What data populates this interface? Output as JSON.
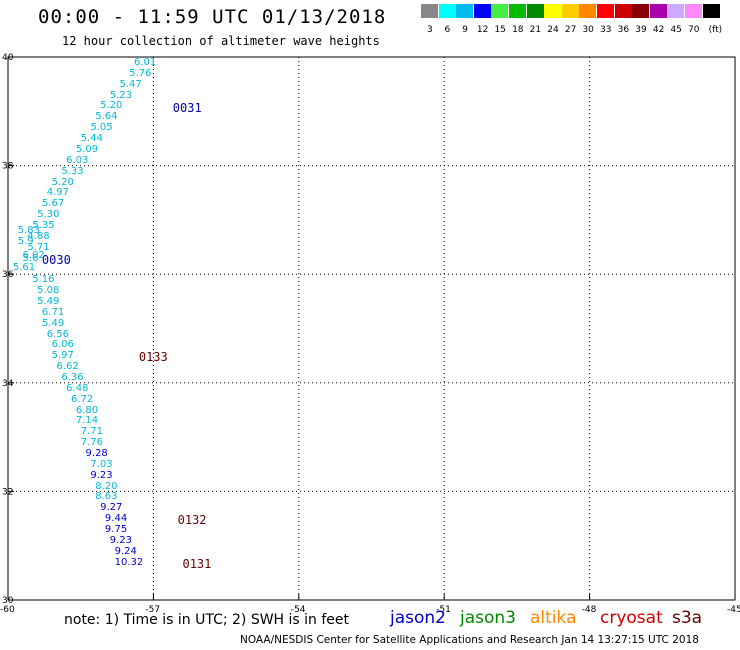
{
  "title": "00:00 - 11:59 UTC 01/13/2018",
  "subtitle": "12 hour collection of altimeter wave heights",
  "scale": {
    "colors": [
      "#888888",
      "#00ffff",
      "#00bbee",
      "#0000ff",
      "#44ee44",
      "#00bb00",
      "#008800",
      "#ffff00",
      "#ffcc00",
      "#ff8800",
      "#ff0000",
      "#cc0000",
      "#880000",
      "#aa00aa",
      "#ccaaff",
      "#ff88ff",
      "#000000"
    ],
    "labels": [
      "3",
      "6",
      "9",
      "12",
      "15",
      "18",
      "21",
      "24",
      "27",
      "30",
      "33",
      "36",
      "39",
      "42",
      "45",
      "70",
      "(ft)"
    ]
  },
  "axes": {
    "lat_labels": [
      "40",
      "38",
      "36",
      "34",
      "32",
      "30"
    ],
    "lon_labels": [
      "-60",
      "-57",
      "-54",
      "-51",
      "-48",
      "-45"
    ]
  },
  "chart_data": {
    "type": "scatter",
    "lon_range": [
      -60,
      -45
    ],
    "lat_range": [
      30,
      40
    ],
    "grid": true,
    "points_cyan": [
      {
        "v": "6.01",
        "lon": -57.4,
        "lat": 39.87
      },
      {
        "v": "5.76",
        "lon": -57.5,
        "lat": 39.67
      },
      {
        "v": "5.47",
        "lon": -57.7,
        "lat": 39.47
      },
      {
        "v": "5.23",
        "lon": -57.9,
        "lat": 39.27
      },
      {
        "v": "5.20",
        "lon": -58.1,
        "lat": 39.07
      },
      {
        "v": "5.64",
        "lon": -58.2,
        "lat": 38.87
      },
      {
        "v": "5.05",
        "lon": -58.3,
        "lat": 38.67
      },
      {
        "v": "5.44",
        "lon": -58.5,
        "lat": 38.47
      },
      {
        "v": "5.09",
        "lon": -58.6,
        "lat": 38.27
      },
      {
        "v": "6.03",
        "lon": -58.8,
        "lat": 38.07
      },
      {
        "v": "5.33",
        "lon": -58.9,
        "lat": 37.87
      },
      {
        "v": "5.20",
        "lon": -59.1,
        "lat": 37.67
      },
      {
        "v": "4.97",
        "lon": -59.2,
        "lat": 37.47
      },
      {
        "v": "5.67",
        "lon": -59.3,
        "lat": 37.27
      },
      {
        "v": "5.30",
        "lon": -59.4,
        "lat": 37.07
      },
      {
        "v": "5.35",
        "lon": -59.5,
        "lat": 36.87
      },
      {
        "v": "4.88",
        "lon": -59.6,
        "lat": 36.67
      },
      {
        "v": "5.83",
        "lon": -59.8,
        "lat": 36.77
      },
      {
        "v": "5.71",
        "lon": -59.6,
        "lat": 36.47
      },
      {
        "v": "5.9",
        "lon": -59.8,
        "lat": 36.57
      },
      {
        "v": "6.02",
        "lon": -59.7,
        "lat": 36.32
      },
      {
        "v": "5.61",
        "lon": -59.9,
        "lat": 36.1
      },
      {
        "v": "5.6",
        "lon": -59.7,
        "lat": 36.27
      },
      {
        "v": "5.16",
        "lon": -59.5,
        "lat": 35.87
      },
      {
        "v": "5.08",
        "lon": -59.4,
        "lat": 35.67
      },
      {
        "v": "5.49",
        "lon": -59.4,
        "lat": 35.47
      },
      {
        "v": "6.71",
        "lon": -59.3,
        "lat": 35.27
      },
      {
        "v": "5.49",
        "lon": -59.3,
        "lat": 35.07
      },
      {
        "v": "6.56",
        "lon": -59.2,
        "lat": 34.87
      },
      {
        "v": "6.06",
        "lon": -59.1,
        "lat": 34.67
      },
      {
        "v": "5.97",
        "lon": -59.1,
        "lat": 34.47
      },
      {
        "v": "6.62",
        "lon": -59.0,
        "lat": 34.27
      },
      {
        "v": "6.36",
        "lon": -58.9,
        "lat": 34.07
      },
      {
        "v": "6.48",
        "lon": -58.8,
        "lat": 33.87
      },
      {
        "v": "6.72",
        "lon": -58.7,
        "lat": 33.67
      },
      {
        "v": "6.80",
        "lon": -58.6,
        "lat": 33.47
      },
      {
        "v": "7.14",
        "lon": -58.6,
        "lat": 33.27
      },
      {
        "v": "7.71",
        "lon": -58.5,
        "lat": 33.07
      },
      {
        "v": "7.76",
        "lon": -58.5,
        "lat": 32.87
      },
      {
        "v": "7.03",
        "lon": -58.3,
        "lat": 32.47
      },
      {
        "v": "8.20",
        "lon": -58.2,
        "lat": 32.07
      },
      {
        "v": "8.63",
        "lon": -58.2,
        "lat": 31.87
      }
    ],
    "points_blue": [
      {
        "v": "9.28",
        "lon": -58.4,
        "lat": 32.67
      },
      {
        "v": "9.23",
        "lon": -58.3,
        "lat": 32.27
      },
      {
        "v": "9.27",
        "lon": -58.1,
        "lat": 31.67
      },
      {
        "v": "9.44",
        "lon": -58.0,
        "lat": 31.47
      },
      {
        "v": "9.75",
        "lon": -58.0,
        "lat": 31.27
      },
      {
        "v": "9.23",
        "lon": -57.9,
        "lat": 31.07
      },
      {
        "v": "9.24",
        "lon": -57.8,
        "lat": 30.87
      },
      {
        "v": "10.32",
        "lon": -57.8,
        "lat": 30.67
      }
    ],
    "time_labels": [
      {
        "t": "0031",
        "lon": -56.6,
        "lat": 39.06,
        "color": "#0000aa"
      },
      {
        "t": "0030",
        "lon": -59.3,
        "lat": 36.27,
        "color": "#0000aa"
      },
      {
        "t": "0133",
        "lon": -57.3,
        "lat": 34.47,
        "color": "#660000"
      },
      {
        "t": "0132",
        "lon": -56.5,
        "lat": 31.47,
        "color": "#660000"
      },
      {
        "t": "0131",
        "lon": -56.4,
        "lat": 30.67,
        "color": "#660000"
      }
    ]
  },
  "note": "note: 1) Time is in UTC; 2) SWH is in feet",
  "satellites": [
    {
      "name": "jason2",
      "color": "#0000cc"
    },
    {
      "name": "jason3",
      "color": "#008800"
    },
    {
      "name": "altika",
      "color": "#ff8800"
    },
    {
      "name": "cryosat",
      "color": "#cc0000"
    },
    {
      "name": "s3a",
      "color": "#660000"
    }
  ],
  "credit": "NOAA/NESDIS Center for Satellite Applications and Research    Jan 14 13:27:15 UTC 2018"
}
